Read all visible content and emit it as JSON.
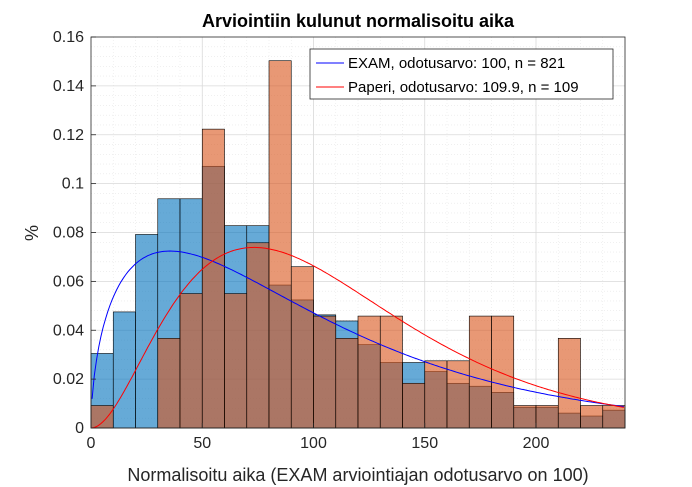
{
  "chart_data": {
    "type": "bar",
    "title": "Arviointiin kulunut normalisoitu aika",
    "xlabel": "Normalisoitu aika (EXAM arviointiajan odotusarvo on 100)",
    "ylabel": "%",
    "xlim": [
      0,
      240
    ],
    "ylim": [
      0,
      0.16
    ],
    "xticks": [
      "0",
      "50",
      "100",
      "150",
      "200"
    ],
    "yticks": [
      "0",
      "0.02",
      "0.04",
      "0.06",
      "0.08",
      "0.1",
      "0.12",
      "0.14",
      "0.16"
    ],
    "bin_width": 10,
    "bin_starts": [
      0,
      10,
      20,
      30,
      40,
      50,
      60,
      70,
      80,
      90,
      100,
      110,
      120,
      130,
      140,
      150,
      160,
      170,
      180,
      190,
      200,
      210,
      220,
      230
    ],
    "grid": true,
    "minor_grid": true,
    "legend_position": "top-right",
    "series": [
      {
        "name": "EXAM, odotusarvo: 100, n = 821",
        "color": "#0072BD",
        "values": [
          0.0305,
          0.0475,
          0.0792,
          0.0938,
          0.0938,
          0.1071,
          0.0828,
          0.0828,
          0.0585,
          0.0524,
          0.0463,
          0.0438,
          0.0341,
          0.0268,
          0.0268,
          0.0231,
          0.0183,
          0.0171,
          0.0146,
          0.0085,
          0.0085,
          0.0061,
          0.0049,
          0.0073
        ]
      },
      {
        "name": "Paperi, odotusarvo: 109.9, n = 109",
        "color": "#D95319",
        "values": [
          0.0092,
          0,
          0,
          0.0367,
          0.055,
          0.1223,
          0.055,
          0.0758,
          0.1503,
          0.066,
          0.0458,
          0.0367,
          0.0458,
          0.0458,
          0.0183,
          0.0275,
          0.0275,
          0.0458,
          0.0458,
          0.0092,
          0.0092,
          0.0367,
          0.0092,
          0.0092
        ]
      }
    ],
    "curves": [
      {
        "series": "EXAM, odotusarvo: 100, n = 821",
        "color": "#0000FF",
        "mean": 100,
        "shape": 1.55
      },
      {
        "series": "Paperi, odotusarvo: 109.9, n = 109",
        "color": "#FF0000",
        "mean": 109.9,
        "shape": 3.0
      }
    ]
  }
}
